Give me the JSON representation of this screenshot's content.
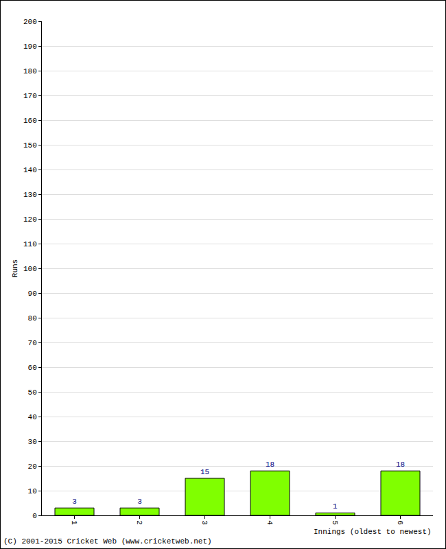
{
  "chart_data": {
    "type": "bar",
    "categories": [
      "1",
      "2",
      "3",
      "4",
      "5",
      "6"
    ],
    "values": [
      3,
      3,
      15,
      18,
      1,
      18
    ],
    "color": "#80ff00",
    "x_label": "Innings (oldest to newest)",
    "y_label": "Runs",
    "annotations": [
      "(C) 2001-2015 Cricket Web (www.cricketweb.net)"
    ],
    "ylim": [
      0,
      200
    ],
    "yticks": [
      0,
      10,
      20,
      30,
      40,
      50,
      60,
      70,
      80,
      90,
      100,
      110,
      120,
      130,
      140,
      150,
      160,
      170,
      180,
      190,
      200
    ],
    "grid": true,
    "data_labels": true
  }
}
